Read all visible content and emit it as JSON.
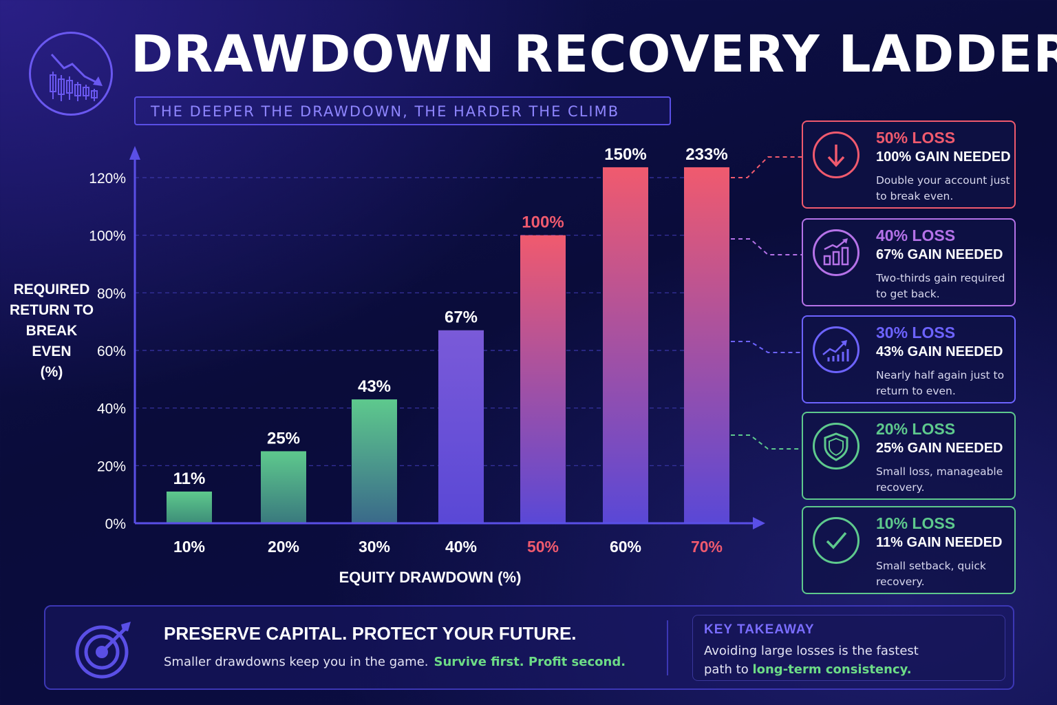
{
  "header": {
    "title": "DRAWDOWN RECOVERY LADDER",
    "subtitle": "THE DEEPER THE DRAWDOWN, THE HARDER THE CLIMB",
    "logo_icon": "falling-candlestick-chart-icon"
  },
  "chart_data": {
    "type": "bar",
    "xlabel": "EQUITY DRAWDOWN (%)",
    "ylabel": "REQUIRED RETURN TO BREAK EVEN (%)",
    "ylabel_lines": [
      "REQUIRED",
      "RETURN TO",
      "BREAK EVEN",
      "(%)"
    ],
    "categories": [
      "10%",
      "20%",
      "30%",
      "40%",
      "50%",
      "60%",
      "70%"
    ],
    "values": [
      11,
      25,
      43,
      67,
      100,
      150,
      233
    ],
    "value_labels": [
      "11%",
      "25%",
      "43%",
      "67%",
      "100%",
      "150%",
      "233%"
    ],
    "y_ticks": [
      "0%",
      "20%",
      "40%",
      "60%",
      "80%",
      "100%",
      "120%"
    ],
    "y_tick_values": [
      0,
      20,
      40,
      60,
      80,
      100,
      120
    ],
    "ylim": [
      0,
      120
    ],
    "grid": true,
    "highlight_categories": [
      "50%",
      "70%"
    ],
    "highlight_color": "#f05a6e",
    "bar_colors": [
      [
        "#5ec98d",
        "#3e8f79"
      ],
      [
        "#5ec98d",
        "#3a7a7e"
      ],
      [
        "#5ec98d",
        "#3a6a8a"
      ],
      [
        "#7a5ad8",
        "#5a48d6"
      ],
      [
        "#f05a6e",
        "#5a48d6"
      ],
      [
        "#f05a6e",
        "#5a48d6"
      ],
      [
        "#f05a6e",
        "#5a48d6"
      ]
    ]
  },
  "cards": [
    {
      "loss": "50% LOSS",
      "gain": "100% GAIN NEEDED",
      "desc": "Double your account just to break even.",
      "color": "#f05a6e",
      "icon": "down-arrow-icon"
    },
    {
      "loss": "40% LOSS",
      "gain": "67% GAIN NEEDED",
      "desc": "Two-thirds gain required to get back.",
      "color": "#b572e8",
      "icon": "rising-bars-icon"
    },
    {
      "loss": "30% LOSS",
      "gain": "43% GAIN NEEDED",
      "desc": "Nearly half again just to return to even.",
      "color": "#6d63ff",
      "icon": "growth-chart-icon"
    },
    {
      "loss": "20% LOSS",
      "gain": "25% GAIN NEEDED",
      "desc": "Small loss, manageable recovery.",
      "color": "#5ec98d",
      "icon": "shield-icon"
    },
    {
      "loss": "10% LOSS",
      "gain": "11% GAIN NEEDED",
      "desc": "Small setback, quick recovery.",
      "color": "#5ec98d",
      "icon": "checkmark-icon"
    }
  ],
  "footer": {
    "icon": "target-icon",
    "heading": "PRESERVE CAPITAL. PROTECT YOUR FUTURE.",
    "text": "Smaller drawdowns keep you in the game.",
    "text_highlight": "Survive first. Profit second.",
    "takeaway_title": "KEY TAKEAWAY",
    "takeaway_text": "Avoiding large losses is the fastest path to",
    "takeaway_highlight": "long-term consistency."
  }
}
